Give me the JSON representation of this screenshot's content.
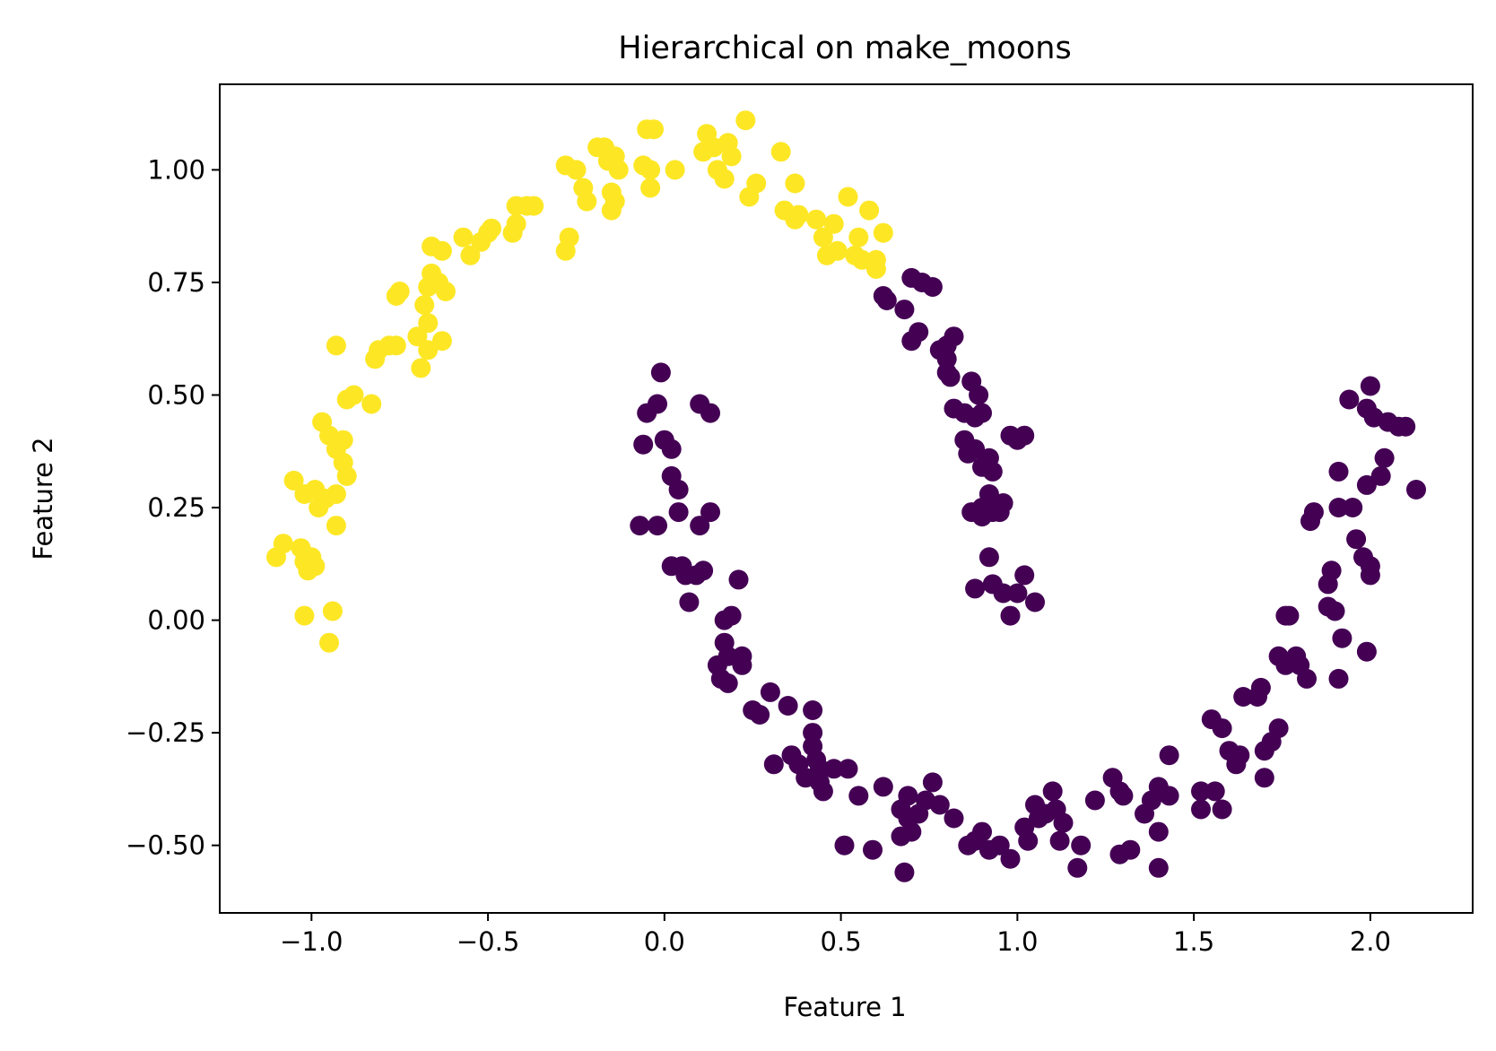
{
  "chart_data": {
    "type": "scatter",
    "title": "Hierarchical on make_moons",
    "xlabel": "Feature 1",
    "ylabel": "Feature 2",
    "xlim": [
      -1.26,
      2.29
    ],
    "ylim": [
      -0.65,
      1.19
    ],
    "x_ticks": [
      -1.0,
      -0.5,
      0.0,
      0.5,
      1.0,
      1.5,
      2.0
    ],
    "x_tick_labels": [
      "−1.0",
      "−0.5",
      "0.0",
      "0.5",
      "1.0",
      "1.5",
      "2.0"
    ],
    "y_ticks": [
      -0.5,
      -0.25,
      0.0,
      0.25,
      0.5,
      0.75,
      1.0
    ],
    "y_tick_labels": [
      "−0.50",
      "−0.25",
      "0.00",
      "0.25",
      "0.50",
      "0.75",
      "1.00"
    ],
    "grid": false,
    "colors": {
      "cluster_0": "#440154",
      "cluster_1": "#fde725"
    },
    "series": [
      {
        "color": "#fde725",
        "points": [
          [
            -1.1,
            0.14
          ],
          [
            -1.08,
            0.17
          ],
          [
            -1.03,
            0.16
          ],
          [
            -1.02,
            0.13
          ],
          [
            -1.0,
            0.14
          ],
          [
            -0.99,
            0.12
          ],
          [
            -1.01,
            0.11
          ],
          [
            -1.05,
            0.31
          ],
          [
            -1.02,
            0.28
          ],
          [
            -0.99,
            0.29
          ],
          [
            -0.98,
            0.25
          ],
          [
            -0.96,
            0.27
          ],
          [
            -0.93,
            0.28
          ],
          [
            -0.97,
            0.44
          ],
          [
            -0.95,
            0.41
          ],
          [
            -0.93,
            0.38
          ],
          [
            -0.91,
            0.4
          ],
          [
            -0.91,
            0.35
          ],
          [
            -0.9,
            0.32
          ],
          [
            -0.93,
            0.21
          ],
          [
            -1.02,
            0.01
          ],
          [
            -0.94,
            0.02
          ],
          [
            -0.95,
            -0.05
          ],
          [
            -0.9,
            0.49
          ],
          [
            -0.88,
            0.5
          ],
          [
            -0.83,
            0.48
          ],
          [
            -0.93,
            0.61
          ],
          [
            -0.82,
            0.58
          ],
          [
            -0.81,
            0.6
          ],
          [
            -0.78,
            0.61
          ],
          [
            -0.76,
            0.61
          ],
          [
            -0.7,
            0.63
          ],
          [
            -0.69,
            0.56
          ],
          [
            -0.67,
            0.6
          ],
          [
            -0.63,
            0.62
          ],
          [
            -0.76,
            0.72
          ],
          [
            -0.75,
            0.73
          ],
          [
            -0.68,
            0.7
          ],
          [
            -0.67,
            0.66
          ],
          [
            -0.67,
            0.74
          ],
          [
            -0.64,
            0.75
          ],
          [
            -0.62,
            0.73
          ],
          [
            -0.66,
            0.77
          ],
          [
            -0.66,
            0.83
          ],
          [
            -0.63,
            0.82
          ],
          [
            -0.57,
            0.85
          ],
          [
            -0.55,
            0.81
          ],
          [
            -0.52,
            0.84
          ],
          [
            -0.5,
            0.86
          ],
          [
            -0.49,
            0.87
          ],
          [
            -0.43,
            0.86
          ],
          [
            -0.42,
            0.88
          ],
          [
            -0.42,
            0.92
          ],
          [
            -0.39,
            0.92
          ],
          [
            -0.37,
            0.92
          ],
          [
            -0.28,
            0.82
          ],
          [
            -0.27,
            0.85
          ],
          [
            -0.28,
            1.01
          ],
          [
            -0.25,
            1.0
          ],
          [
            -0.23,
            0.96
          ],
          [
            -0.22,
            0.93
          ],
          [
            -0.19,
            1.05
          ],
          [
            -0.17,
            1.05
          ],
          [
            -0.16,
            1.02
          ],
          [
            -0.14,
            1.03
          ],
          [
            -0.13,
            1.0
          ],
          [
            -0.15,
            0.95
          ],
          [
            -0.14,
            0.93
          ],
          [
            -0.15,
            0.91
          ],
          [
            -0.06,
            1.01
          ],
          [
            -0.04,
            1.0
          ],
          [
            -0.04,
            0.96
          ],
          [
            -0.05,
            1.09
          ],
          [
            -0.03,
            1.09
          ],
          [
            0.03,
            1.0
          ],
          [
            0.11,
            1.04
          ],
          [
            0.12,
            1.08
          ],
          [
            0.14,
            1.05
          ],
          [
            0.15,
            1.0
          ],
          [
            0.17,
            0.98
          ],
          [
            0.18,
            1.06
          ],
          [
            0.19,
            1.03
          ],
          [
            0.23,
            1.11
          ],
          [
            0.24,
            0.94
          ],
          [
            0.26,
            0.97
          ],
          [
            0.33,
            1.04
          ],
          [
            0.34,
            0.91
          ],
          [
            0.37,
            0.97
          ],
          [
            0.37,
            0.89
          ],
          [
            0.38,
            0.9
          ],
          [
            0.43,
            0.89
          ],
          [
            0.45,
            0.85
          ],
          [
            0.46,
            0.81
          ],
          [
            0.48,
            0.88
          ],
          [
            0.49,
            0.82
          ],
          [
            0.52,
            0.94
          ],
          [
            0.54,
            0.81
          ],
          [
            0.55,
            0.85
          ],
          [
            0.56,
            0.8
          ],
          [
            0.58,
            0.91
          ],
          [
            0.6,
            0.8
          ],
          [
            0.6,
            0.78
          ],
          [
            0.62,
            0.86
          ]
        ]
      },
      {
        "color": "#440154",
        "points": [
          [
            0.62,
            0.72
          ],
          [
            0.63,
            0.71
          ],
          [
            0.7,
            0.76
          ],
          [
            0.73,
            0.75
          ],
          [
            0.68,
            0.69
          ],
          [
            0.7,
            0.62
          ],
          [
            0.72,
            0.64
          ],
          [
            0.76,
            0.74
          ],
          [
            0.78,
            0.6
          ],
          [
            0.8,
            0.61
          ],
          [
            0.8,
            0.58
          ],
          [
            0.8,
            0.55
          ],
          [
            0.81,
            0.54
          ],
          [
            0.82,
            0.63
          ],
          [
            0.82,
            0.47
          ],
          [
            0.85,
            0.46
          ],
          [
            0.87,
            0.53
          ],
          [
            0.89,
            0.5
          ],
          [
            0.88,
            0.45
          ],
          [
            0.9,
            0.46
          ],
          [
            0.85,
            0.4
          ],
          [
            0.86,
            0.37
          ],
          [
            0.88,
            0.38
          ],
          [
            0.9,
            0.34
          ],
          [
            0.92,
            0.36
          ],
          [
            0.93,
            0.33
          ],
          [
            0.92,
            0.28
          ],
          [
            0.9,
            0.25
          ],
          [
            0.87,
            0.24
          ],
          [
            0.9,
            0.23
          ],
          [
            0.93,
            0.24
          ],
          [
            0.95,
            0.24
          ],
          [
            0.96,
            0.26
          ],
          [
            0.98,
            0.41
          ],
          [
            1.0,
            0.4
          ],
          [
            1.02,
            0.41
          ],
          [
            0.92,
            0.14
          ],
          [
            0.88,
            0.07
          ],
          [
            0.93,
            0.08
          ],
          [
            0.96,
            0.06
          ],
          [
            0.98,
            0.01
          ],
          [
            1.0,
            0.06
          ],
          [
            1.02,
            0.1
          ],
          [
            1.05,
            0.04
          ],
          [
            -0.05,
            0.46
          ],
          [
            -0.02,
            0.48
          ],
          [
            -0.01,
            0.55
          ],
          [
            -0.06,
            0.39
          ],
          [
            0.0,
            0.4
          ],
          [
            0.02,
            0.38
          ],
          [
            0.02,
            0.32
          ],
          [
            0.04,
            0.29
          ],
          [
            0.04,
            0.24
          ],
          [
            0.1,
            0.48
          ],
          [
            0.13,
            0.46
          ],
          [
            0.1,
            0.21
          ],
          [
            0.13,
            0.24
          ],
          [
            -0.07,
            0.21
          ],
          [
            -0.02,
            0.21
          ],
          [
            0.02,
            0.12
          ],
          [
            0.05,
            0.12
          ],
          [
            0.06,
            0.1
          ],
          [
            0.09,
            0.1
          ],
          [
            0.11,
            0.11
          ],
          [
            0.07,
            0.04
          ],
          [
            0.21,
            0.09
          ],
          [
            0.17,
            0.0
          ],
          [
            0.19,
            0.01
          ],
          [
            0.17,
            -0.05
          ],
          [
            0.18,
            -0.08
          ],
          [
            0.15,
            -0.1
          ],
          [
            0.16,
            -0.13
          ],
          [
            0.18,
            -0.14
          ],
          [
            0.22,
            -0.08
          ],
          [
            0.22,
            -0.1
          ],
          [
            0.25,
            -0.2
          ],
          [
            0.27,
            -0.21
          ],
          [
            0.3,
            -0.16
          ],
          [
            0.31,
            -0.32
          ],
          [
            0.35,
            -0.19
          ],
          [
            0.36,
            -0.3
          ],
          [
            0.38,
            -0.32
          ],
          [
            0.4,
            -0.35
          ],
          [
            0.42,
            -0.2
          ],
          [
            0.42,
            -0.25
          ],
          [
            0.42,
            -0.28
          ],
          [
            0.43,
            -0.31
          ],
          [
            0.44,
            -0.33
          ],
          [
            0.44,
            -0.36
          ],
          [
            0.45,
            -0.38
          ],
          [
            0.48,
            -0.33
          ],
          [
            0.52,
            -0.33
          ],
          [
            0.51,
            -0.5
          ],
          [
            0.55,
            -0.39
          ],
          [
            0.59,
            -0.51
          ],
          [
            0.62,
            -0.37
          ],
          [
            0.67,
            -0.42
          ],
          [
            0.69,
            -0.39
          ],
          [
            0.69,
            -0.44
          ],
          [
            0.7,
            -0.47
          ],
          [
            0.67,
            -0.48
          ],
          [
            0.68,
            -0.56
          ],
          [
            0.72,
            -0.43
          ],
          [
            0.74,
            -0.4
          ],
          [
            0.76,
            -0.36
          ],
          [
            0.78,
            -0.41
          ],
          [
            0.82,
            -0.44
          ],
          [
            0.86,
            -0.5
          ],
          [
            0.88,
            -0.49
          ],
          [
            0.9,
            -0.47
          ],
          [
            0.92,
            -0.51
          ],
          [
            0.95,
            -0.5
          ],
          [
            0.98,
            -0.53
          ],
          [
            1.02,
            -0.46
          ],
          [
            1.03,
            -0.49
          ],
          [
            1.05,
            -0.41
          ],
          [
            1.06,
            -0.44
          ],
          [
            1.08,
            -0.43
          ],
          [
            1.1,
            -0.38
          ],
          [
            1.11,
            -0.42
          ],
          [
            1.12,
            -0.49
          ],
          [
            1.13,
            -0.45
          ],
          [
            1.17,
            -0.55
          ],
          [
            1.18,
            -0.5
          ],
          [
            1.22,
            -0.4
          ],
          [
            1.27,
            -0.35
          ],
          [
            1.29,
            -0.38
          ],
          [
            1.3,
            -0.39
          ],
          [
            1.29,
            -0.52
          ],
          [
            1.32,
            -0.51
          ],
          [
            1.36,
            -0.43
          ],
          [
            1.38,
            -0.4
          ],
          [
            1.4,
            -0.37
          ],
          [
            1.4,
            -0.47
          ],
          [
            1.4,
            -0.55
          ],
          [
            1.43,
            -0.3
          ],
          [
            1.43,
            -0.39
          ],
          [
            1.52,
            -0.38
          ],
          [
            1.52,
            -0.42
          ],
          [
            1.55,
            -0.22
          ],
          [
            1.56,
            -0.38
          ],
          [
            1.58,
            -0.24
          ],
          [
            1.58,
            -0.42
          ],
          [
            1.6,
            -0.29
          ],
          [
            1.62,
            -0.32
          ],
          [
            1.63,
            -0.3
          ],
          [
            1.64,
            -0.17
          ],
          [
            1.68,
            -0.17
          ],
          [
            1.69,
            -0.15
          ],
          [
            1.7,
            -0.29
          ],
          [
            1.7,
            -0.35
          ],
          [
            1.72,
            -0.27
          ],
          [
            1.74,
            -0.24
          ],
          [
            1.74,
            -0.08
          ],
          [
            1.76,
            -0.1
          ],
          [
            1.76,
            0.01
          ],
          [
            1.77,
            0.01
          ],
          [
            1.79,
            -0.08
          ],
          [
            1.8,
            -0.1
          ],
          [
            1.82,
            -0.13
          ],
          [
            1.83,
            0.22
          ],
          [
            1.84,
            0.24
          ],
          [
            1.88,
            0.03
          ],
          [
            1.88,
            0.08
          ],
          [
            1.89,
            0.11
          ],
          [
            1.9,
            0.02
          ],
          [
            1.91,
            0.25
          ],
          [
            1.91,
            0.33
          ],
          [
            1.92,
            -0.04
          ],
          [
            1.91,
            -0.13
          ],
          [
            1.95,
            0.25
          ],
          [
            1.96,
            0.18
          ],
          [
            1.98,
            0.14
          ],
          [
            1.99,
            -0.07
          ],
          [
            1.94,
            0.49
          ],
          [
            1.99,
            0.47
          ],
          [
            2.0,
            0.52
          ],
          [
            2.01,
            0.45
          ],
          [
            1.99,
            0.3
          ],
          [
            2.0,
            0.12
          ],
          [
            2.0,
            0.1
          ],
          [
            2.03,
            0.32
          ],
          [
            2.04,
            0.36
          ],
          [
            2.05,
            0.44
          ],
          [
            2.08,
            0.43
          ],
          [
            2.1,
            0.43
          ],
          [
            2.13,
            0.29
          ]
        ]
      }
    ]
  }
}
